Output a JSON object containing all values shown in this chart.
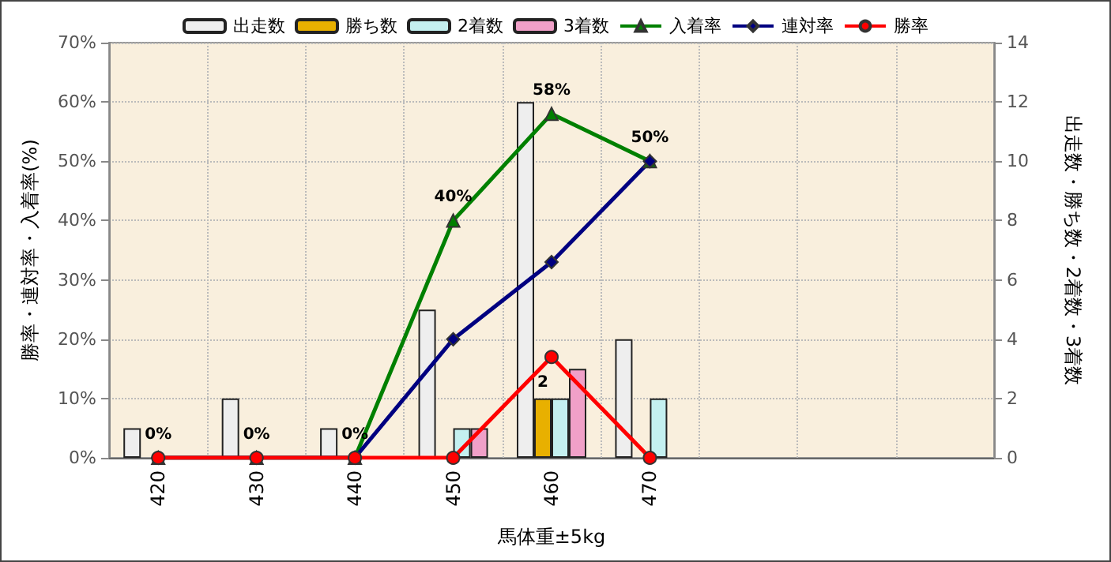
{
  "chart_data": {
    "type": "bar",
    "xlabel": "馬体重±5kg",
    "ylabel": "勝率・連対率・入着率(%)",
    "y2label": "出走数・勝ち数・2着数・3着数",
    "categories": [
      "420",
      "430",
      "440",
      "450",
      "460",
      "470",
      null,
      null,
      null
    ],
    "series": [
      {
        "name": "出走数",
        "axis": "y2",
        "color": "#eeeeee",
        "values": [
          1,
          2,
          1,
          5,
          12,
          4,
          null,
          null,
          null
        ]
      },
      {
        "name": "勝ち数",
        "axis": "y2",
        "color": "#e8b000",
        "values": [
          0,
          0,
          0,
          0,
          2,
          0,
          null,
          null,
          null
        ],
        "value_labels": [
          null,
          null,
          null,
          null,
          "2",
          null,
          null,
          null,
          null
        ]
      },
      {
        "name": "2着数",
        "axis": "y2",
        "color": "#c4f0f0",
        "values": [
          0,
          0,
          0,
          1,
          2,
          2,
          null,
          null,
          null
        ]
      },
      {
        "name": "3着数",
        "axis": "y2",
        "color": "#f0a0c8",
        "values": [
          0,
          0,
          0,
          1,
          3,
          0,
          null,
          null,
          null
        ]
      },
      {
        "name": "入着率",
        "type": "line",
        "color": "#008000",
        "marker": "triangle",
        "values": [
          0,
          0,
          0,
          40,
          58,
          50,
          null,
          null,
          null
        ],
        "value_labels": [
          "0%",
          "0%",
          "0%",
          "40%",
          "58%",
          "50%",
          null,
          null,
          null
        ]
      },
      {
        "name": "連対率",
        "type": "line",
        "color": "#000080",
        "marker": "diamond",
        "values": [
          0,
          0,
          0,
          20,
          33,
          50,
          null,
          null,
          null
        ]
      },
      {
        "name": "勝率",
        "type": "line",
        "color": "#ff0000",
        "marker": "circle",
        "values": [
          0,
          0,
          0,
          0,
          17,
          0,
          null,
          null,
          null
        ]
      }
    ],
    "ylim": [
      0,
      70
    ],
    "yticks": [
      {
        "value": 0,
        "label": "0%"
      },
      {
        "value": 10,
        "label": "10%"
      },
      {
        "value": 20,
        "label": "20%"
      },
      {
        "value": 30,
        "label": "30%"
      },
      {
        "value": 40,
        "label": "40%"
      },
      {
        "value": 50,
        "label": "50%"
      },
      {
        "value": 60,
        "label": "60%"
      },
      {
        "value": 70,
        "label": "70%"
      }
    ],
    "y2lim": [
      0,
      14
    ],
    "y2ticks": [
      0,
      2,
      4,
      6,
      8,
      10,
      12,
      14
    ],
    "grid": true,
    "legend": "top",
    "line_style": "solid"
  }
}
